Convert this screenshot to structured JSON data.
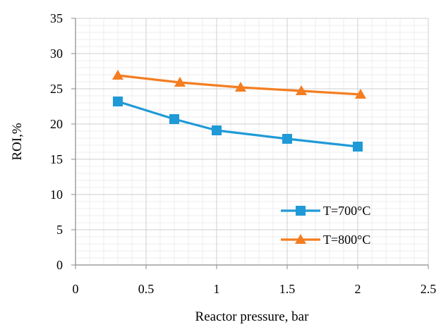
{
  "chart_data": {
    "type": "line",
    "title": "",
    "xlabel": "Reactor pressure, bar",
    "ylabel": "ROI,%",
    "xlim": [
      0,
      2.5
    ],
    "ylim": [
      0,
      35
    ],
    "xticks": [
      0,
      0.5,
      1,
      1.5,
      2,
      2.5
    ],
    "yticks": [
      0,
      5,
      10,
      15,
      20,
      25,
      30,
      35
    ],
    "xtick_labels": [
      "0",
      "0.5",
      "1",
      "1.5",
      "2",
      "2.5"
    ],
    "ytick_labels": [
      "0",
      "5",
      "10",
      "15",
      "20",
      "25",
      "30",
      "35"
    ],
    "grid": true,
    "legend_position": "lower-right",
    "series": [
      {
        "name": "T=700°C",
        "color": "#1f9ad7",
        "marker": "square",
        "x": [
          0.3,
          0.7,
          1.0,
          1.5,
          2.0
        ],
        "y": [
          23.2,
          20.7,
          19.1,
          17.9,
          16.8
        ]
      },
      {
        "name": "T=800°C",
        "color": "#f47d20",
        "marker": "triangle",
        "x": [
          0.3,
          0.74,
          1.17,
          1.6,
          2.02
        ],
        "y": [
          26.9,
          25.9,
          25.2,
          24.7,
          24.2
        ]
      }
    ]
  }
}
